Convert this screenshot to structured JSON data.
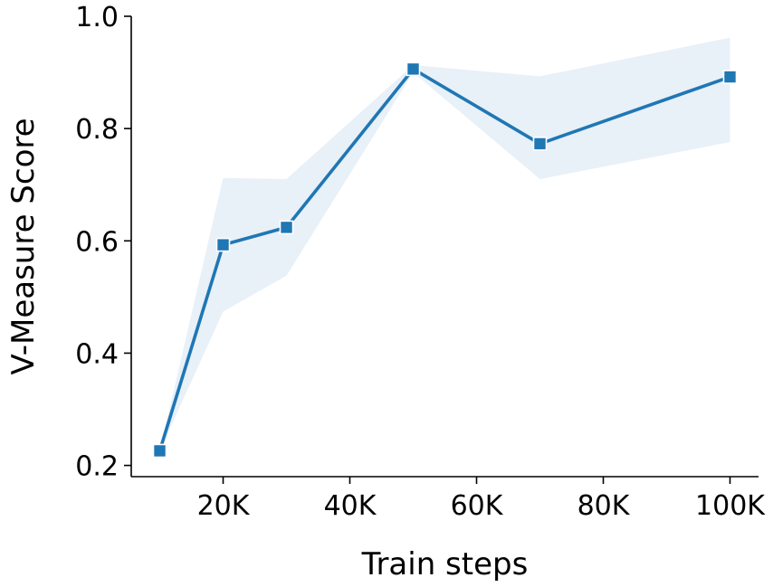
{
  "chart_data": {
    "type": "line",
    "title": "",
    "xlabel": "Train steps",
    "ylabel": "V-Measure Score",
    "x": [
      10000,
      20000,
      30000,
      50000,
      70000,
      100000
    ],
    "xlim": [
      5500,
      104500
    ],
    "ylim": [
      0.18,
      1.0
    ],
    "x_ticks": [
      20000,
      40000,
      60000,
      80000,
      100000
    ],
    "x_tick_labels": [
      "20K",
      "40K",
      "60K",
      "80K",
      "100K"
    ],
    "y_ticks": [
      0.2,
      0.4,
      0.6,
      0.8,
      1.0
    ],
    "y_tick_labels": [
      "0.2",
      "0.4",
      "0.6",
      "0.8",
      "1.0"
    ],
    "grid": false,
    "series": [
      {
        "values": [
          0.226,
          0.593,
          0.624,
          0.906,
          0.773,
          0.892
        ],
        "ci_lower": [
          0.226,
          0.474,
          0.538,
          0.9,
          0.71,
          0.776
        ],
        "ci_upper": [
          0.226,
          0.712,
          0.71,
          0.913,
          0.893,
          0.962
        ],
        "color": "#1f77b4",
        "band_color": "#c6d9ee",
        "marker": "square"
      }
    ]
  }
}
